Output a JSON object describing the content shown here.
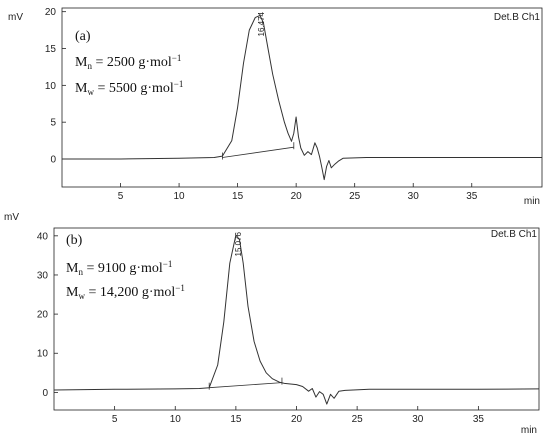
{
  "chart_data": [
    {
      "type": "line",
      "panel_label": "(a)",
      "ylabel_unit": "mV",
      "xlabel_unit": "min",
      "detector": "Det.B Ch1",
      "peak_label": "16.474",
      "peak_time": 16.9,
      "xlim": [
        0,
        41
      ],
      "ylim": [
        -3.8,
        20.5
      ],
      "xticks": [
        5,
        10,
        15,
        20,
        25,
        30,
        35
      ],
      "yticks": [
        0,
        5,
        10,
        15,
        20
      ],
      "annotations": [
        {
          "main": "M",
          "sub": "n",
          "rest": " = 2500 g·mol",
          "sup": "−1"
        },
        {
          "main": "M",
          "sub": "w",
          "rest": " = 5500 g·mol",
          "sup": "−1"
        }
      ],
      "series": [
        {
          "x": [
            0,
            5,
            10,
            13,
            13.7,
            14.5,
            15,
            15.5,
            16,
            16.5,
            16.9,
            17.2,
            17.6,
            18,
            18.5,
            19,
            19.3,
            19.6,
            19.8,
            20.0,
            20.2,
            20.4,
            20.7,
            21.0,
            21.3,
            21.6,
            21.8,
            22.0,
            22.2,
            22.4,
            22.6,
            22.8,
            23.0,
            23.3,
            23.6,
            24,
            26,
            30,
            35,
            41
          ],
          "y": [
            0,
            0,
            0.1,
            0.2,
            0.4,
            2.5,
            7,
            13,
            17.5,
            19.2,
            19.5,
            18.5,
            15,
            11.5,
            8,
            5,
            3.5,
            2.4,
            3.5,
            5.7,
            3,
            1.5,
            0.5,
            1,
            0.6,
            2.2,
            1.5,
            0.3,
            -1.2,
            -2.8,
            -1,
            -0.2,
            -1.2,
            -0.7,
            -0.3,
            0.1,
            0.2,
            0.2,
            0.2,
            0.2
          ]
        },
        {
          "x": [
            13.7,
            19.8
          ],
          "y": [
            0.2,
            1.6
          ]
        }
      ]
    },
    {
      "type": "line",
      "panel_label": "(b)",
      "ylabel_unit": "mV",
      "xlabel_unit": "min",
      "detector": "Det.B Ch1",
      "peak_label": "15.076",
      "peak_time": 15.1,
      "xlim": [
        0,
        40
      ],
      "ylim": [
        -4.5,
        42
      ],
      "xticks": [
        5,
        10,
        15,
        20,
        25,
        30,
        35
      ],
      "yticks": [
        0,
        10,
        20,
        30,
        40
      ],
      "annotations": [
        {
          "main": "M",
          "sub": "n",
          "rest": " = 9100 g·mol",
          "sup": "−1"
        },
        {
          "main": "M",
          "sub": "w",
          "rest": " = 14,200 g·mol",
          "sup": "−1"
        }
      ],
      "series": [
        {
          "x": [
            0,
            5,
            10,
            12,
            12.8,
            13.5,
            14,
            14.5,
            15,
            15.3,
            15.6,
            16,
            16.5,
            17,
            17.5,
            18,
            18.6,
            19,
            20,
            20.5,
            21,
            21.3,
            21.6,
            21.9,
            22.2,
            22.5,
            22.8,
            23.1,
            23.5,
            24,
            26,
            30,
            35,
            40
          ],
          "y": [
            0.6,
            0.8,
            0.9,
            1,
            1.2,
            7,
            18,
            33,
            40.2,
            39,
            33,
            22,
            13,
            8,
            5,
            3.5,
            2.6,
            2.3,
            2,
            1.5,
            0.3,
            1,
            -1.2,
            0.2,
            -0.5,
            -3,
            -0.5,
            -1.5,
            0.3,
            0.5,
            0.8,
            0.8,
            0.8,
            0.9
          ]
        },
        {
          "x": [
            12.8,
            18.8
          ],
          "y": [
            1.2,
            2.5
          ]
        }
      ]
    }
  ]
}
